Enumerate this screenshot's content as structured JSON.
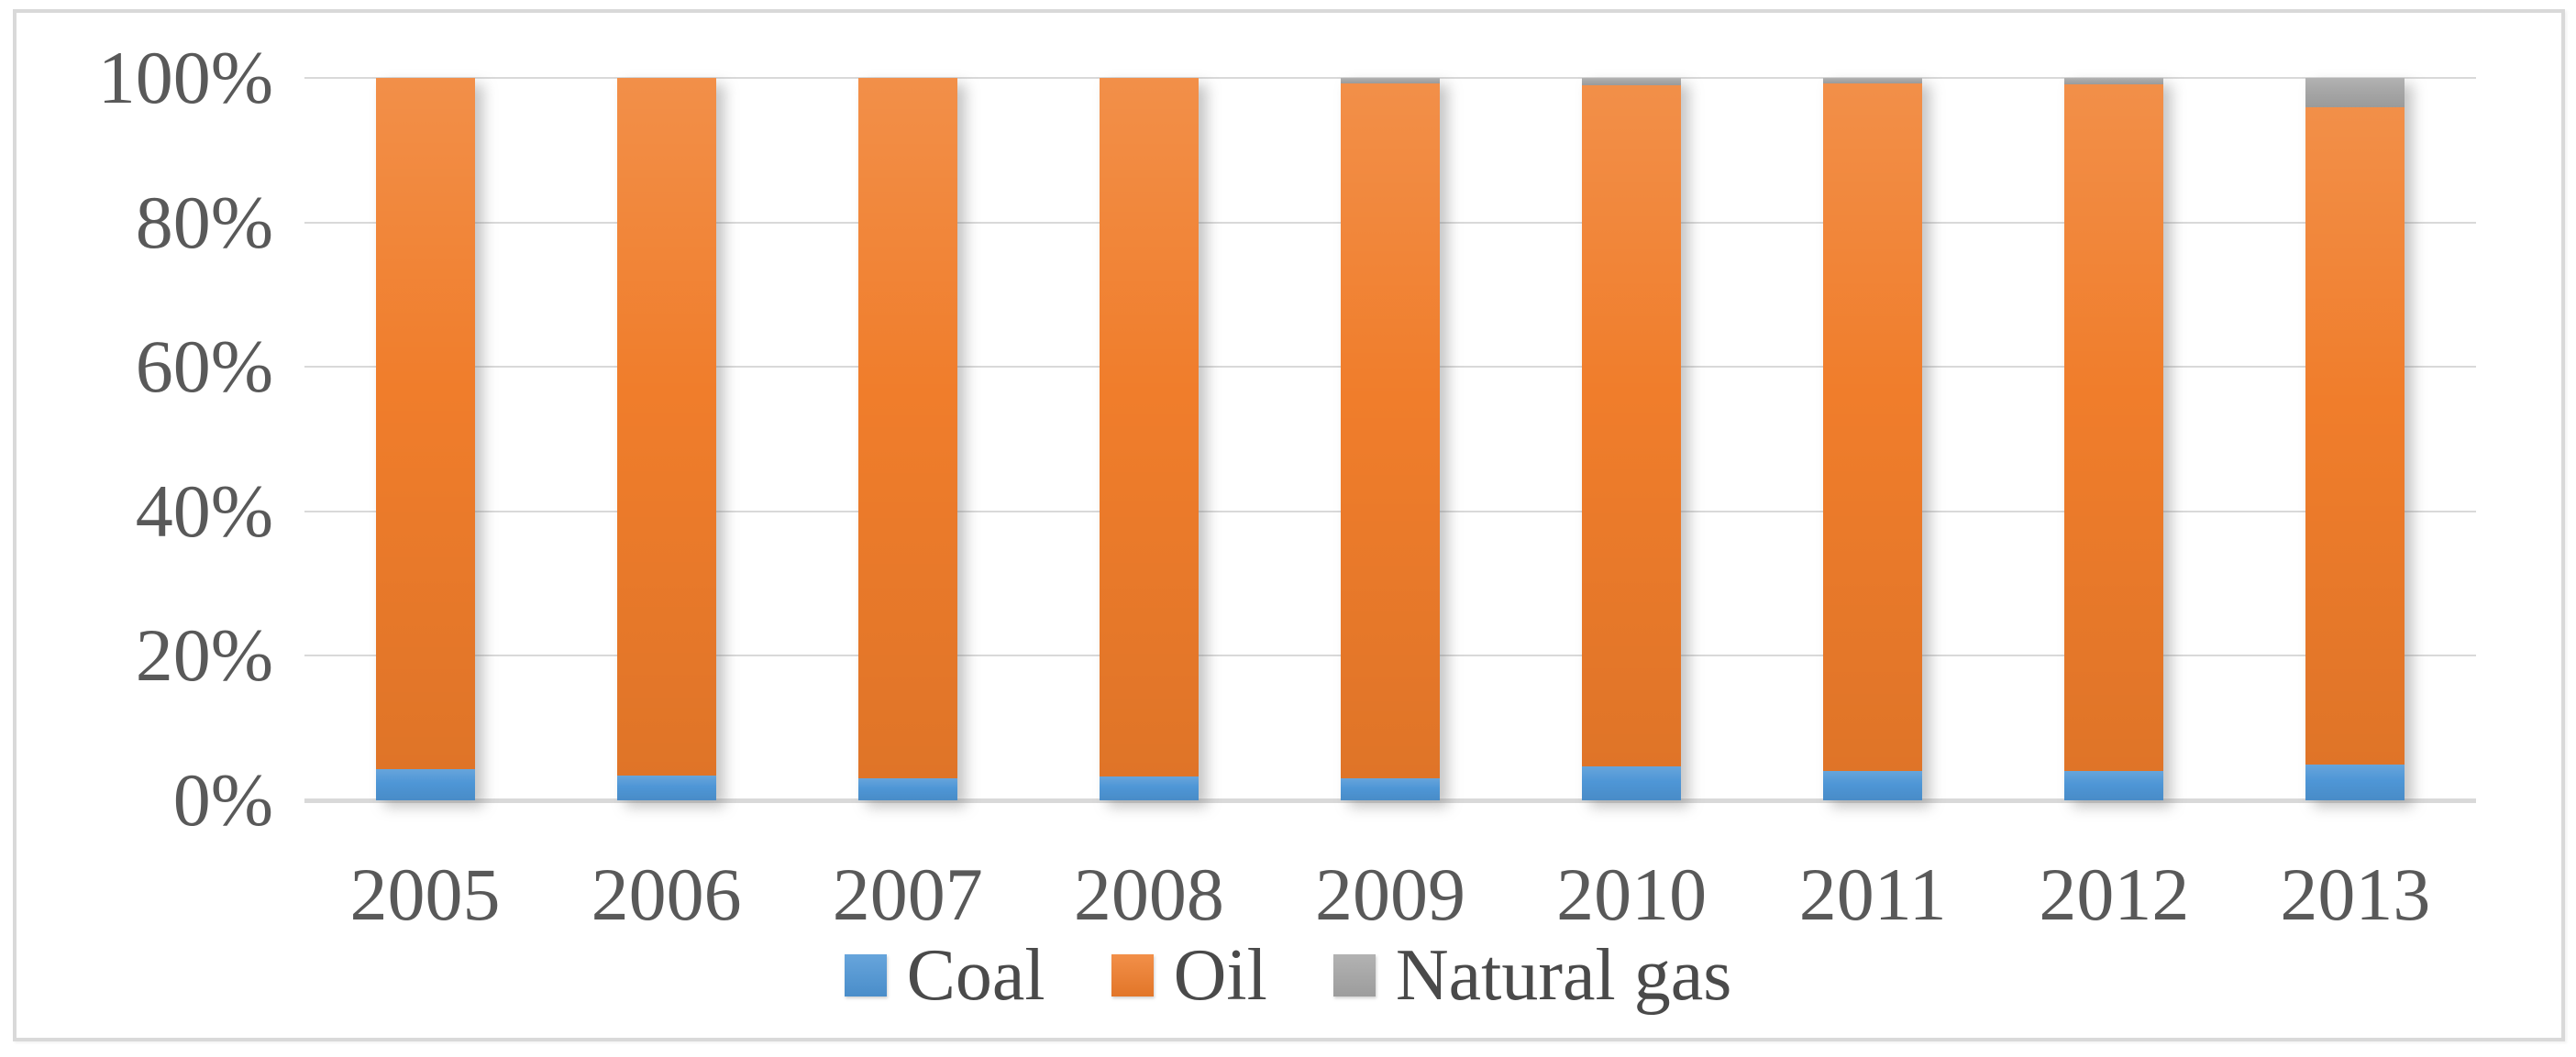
{
  "chart_data": {
    "type": "bar",
    "variant": "stacked-100-percent",
    "title": "",
    "xlabel": "",
    "ylabel": "",
    "categories": [
      "2005",
      "2006",
      "2007",
      "2008",
      "2009",
      "2010",
      "2011",
      "2012",
      "2013"
    ],
    "series": [
      {
        "name": "Coal",
        "color": "#4E96D6",
        "values": [
          4.3,
          3.4,
          3.0,
          3.3,
          3.0,
          4.7,
          4.1,
          4.0,
          5.0
        ]
      },
      {
        "name": "Oil",
        "color": "#F07D2B",
        "values": [
          95.7,
          96.6,
          97.0,
          96.7,
          96.3,
          94.3,
          95.1,
          95.1,
          91.0
        ]
      },
      {
        "name": "Natural gas",
        "color": "#A6A6A6",
        "values": [
          0.0,
          0.0,
          0.0,
          0.0,
          0.7,
          1.0,
          0.8,
          0.9,
          4.0
        ]
      }
    ],
    "stack_order_bottom_to_top": [
      "Coal",
      "Oil",
      "Natural gas"
    ],
    "ylim": [
      0,
      100
    ],
    "yticks": [
      0,
      20,
      40,
      60,
      80,
      100
    ],
    "ytick_labels": [
      "0%",
      "20%",
      "40%",
      "60%",
      "80%",
      "100%"
    ],
    "grid": true,
    "legend_position": "bottom",
    "legend": [
      "Coal",
      "Oil",
      "Natural gas"
    ],
    "axis_text_color": "#595959",
    "gridline_color": "#D9D9D9",
    "chart_border_color": "#D9D9D9",
    "background_color": "#FFFFFF"
  }
}
